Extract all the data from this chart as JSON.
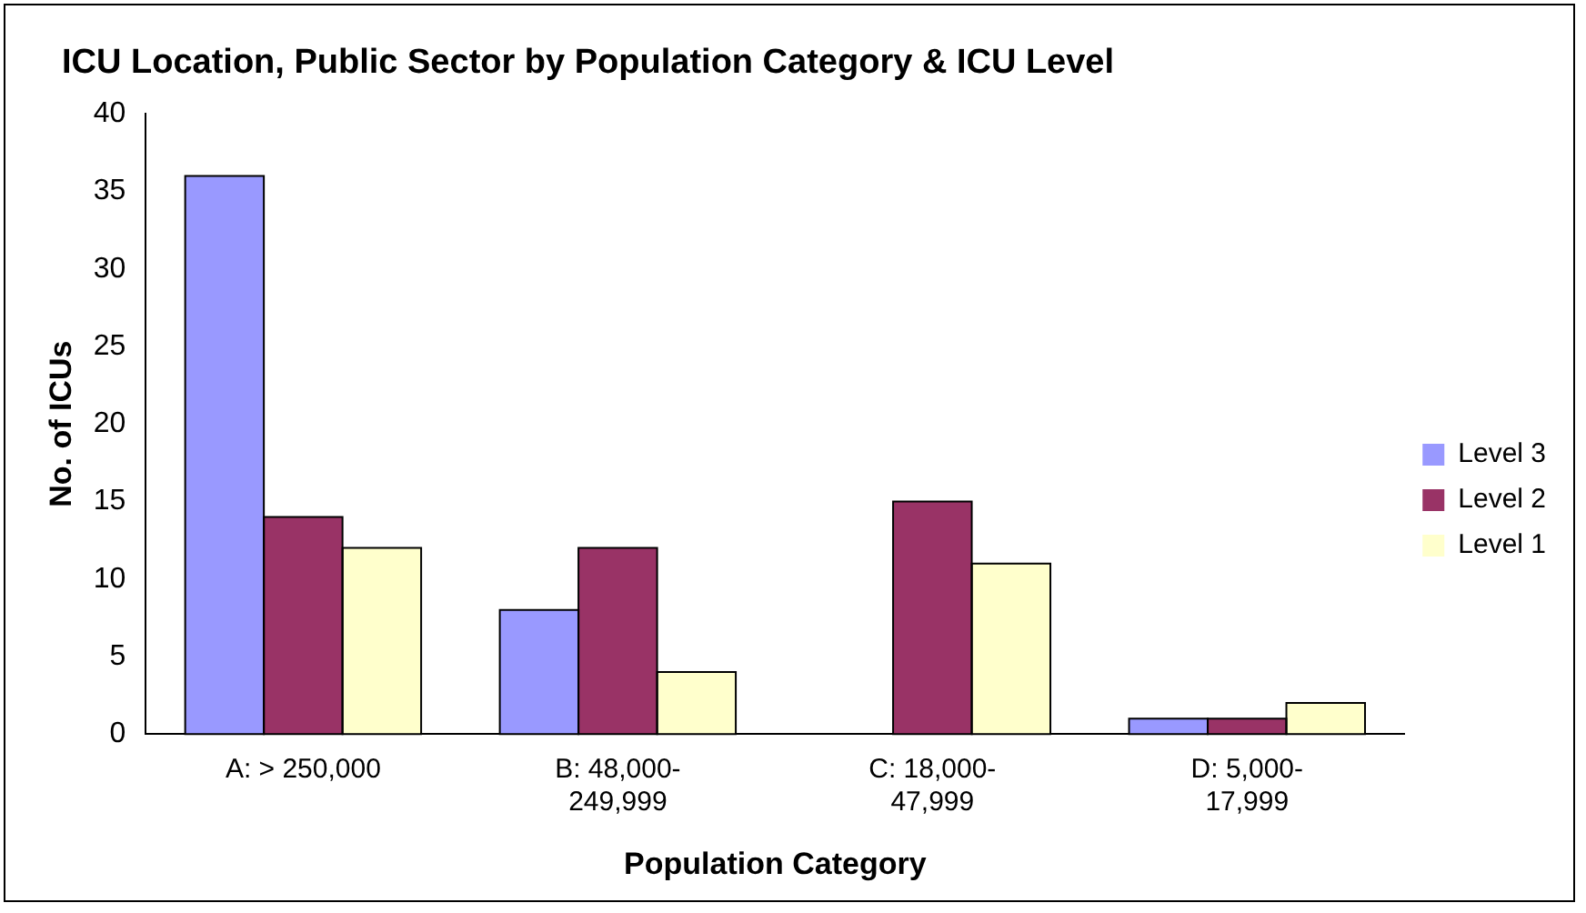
{
  "chart_data": {
    "type": "bar",
    "title": "ICU Location, Public Sector by Population Category & ICU Level",
    "xlabel": "Population Category",
    "ylabel": "No. of ICUs",
    "categories": [
      "A: > 250,000",
      "B: 48,000-249,999",
      "C: 18,000-47,999",
      "D: 5,000-17,999"
    ],
    "series": [
      {
        "name": "Level 3",
        "color": "#9999ff",
        "values": [
          36,
          8,
          0,
          1
        ]
      },
      {
        "name": "Level 2",
        "color": "#993366",
        "values": [
          14,
          12,
          15,
          1
        ]
      },
      {
        "name": "Level 1",
        "color": "#ffffcc",
        "values": [
          12,
          4,
          11,
          2
        ]
      }
    ],
    "ylim": [
      0,
      40
    ],
    "yticks": [
      0,
      5,
      10,
      15,
      20,
      25,
      30,
      35,
      40
    ],
    "grid": false,
    "legend": "right"
  }
}
